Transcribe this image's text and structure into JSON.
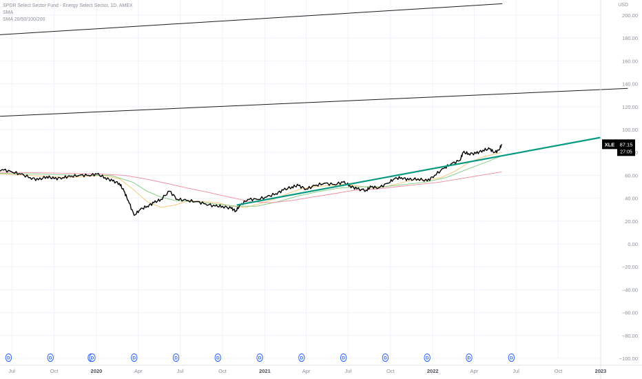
{
  "header": {
    "title": "SPDR Select Sector Fund - Energy Select Sector, 1D, AMEX",
    "indicator1": "SMA",
    "indicator2": "SMA 20/50/100/200",
    "currency": "USD"
  },
  "price_badge": {
    "symbol": "XLE",
    "price": "87.15",
    "countdown": "27:05"
  },
  "dividend_marker_label": "D",
  "colors": {
    "price": "#000000",
    "sma50": "#f5c16c",
    "sma100": "#7ec87e",
    "sma200": "#f08a9b",
    "trendline": "#089981",
    "channel": "#1a1a1a",
    "dividend": "#2962ff",
    "axis_text": "#8a8f99",
    "grid": "#f0f3fa"
  },
  "chart_data": {
    "type": "line",
    "title": "SPDR Select Sector Fund - Energy Select Sector, 1D, AMEX",
    "ylabel": "USD",
    "ylim": [
      -100,
      210
    ],
    "y_ticks": [
      200,
      180,
      160,
      140,
      120,
      100,
      80,
      60,
      40,
      20,
      0,
      -20,
      -40,
      -60,
      -80,
      -100
    ],
    "y_tick_labels": [
      "200.00",
      "180.00",
      "160.00",
      "140.00",
      "120.00",
      "100.00",
      "80.00",
      "60.00",
      "40.00",
      "20.00",
      "0.00",
      "−20.00",
      "−40.00",
      "−60.00",
      "−80.00",
      "−100.00"
    ],
    "x_ticks": [
      "2019-07-01",
      "2019-10-01",
      "2020-01-01",
      "2020-04-01",
      "2020-07-01",
      "2020-10-01",
      "2021-01-01",
      "2021-04-01",
      "2021-07-01",
      "2021-10-01",
      "2022-01-01",
      "2022-04-01",
      "2022-07-01",
      "2022-10-01",
      "2023-01-01"
    ],
    "x_tick_labels": [
      "Jul",
      "Oct",
      "2020",
      "Apr",
      "Jul",
      "Oct",
      "2021",
      "Apr",
      "Jul",
      "Oct",
      "2022",
      "Apr",
      "Jul",
      "Oct",
      "2023"
    ],
    "xlim": [
      "2019-05-01",
      "2023-03-01"
    ],
    "grid": true,
    "series": [
      {
        "name": "XLE",
        "x": [
          "2019-05-01",
          "2019-05-20",
          "2019-06-10",
          "2019-07-01",
          "2019-07-20",
          "2019-08-10",
          "2019-08-28",
          "2019-09-15",
          "2019-10-01",
          "2019-10-20",
          "2019-11-05",
          "2019-11-25",
          "2019-12-15",
          "2020-01-02",
          "2020-01-20",
          "2020-02-05",
          "2020-02-20",
          "2020-03-01",
          "2020-03-10",
          "2020-03-23",
          "2020-04-05",
          "2020-04-20",
          "2020-05-05",
          "2020-05-20",
          "2020-06-08",
          "2020-06-25",
          "2020-07-15",
          "2020-08-05",
          "2020-08-25",
          "2020-09-15",
          "2020-10-01",
          "2020-10-20",
          "2020-10-30",
          "2020-11-09",
          "2020-11-25",
          "2020-12-15",
          "2021-01-05",
          "2021-01-25",
          "2021-02-10",
          "2021-03-01",
          "2021-03-15",
          "2021-04-01",
          "2021-04-20",
          "2021-05-10",
          "2021-06-01",
          "2021-06-20",
          "2021-07-05",
          "2021-07-20",
          "2021-08-10",
          "2021-08-20",
          "2021-09-05",
          "2021-09-25",
          "2021-10-10",
          "2021-10-25",
          "2021-11-10",
          "2021-11-30",
          "2021-12-20",
          "2022-01-05",
          "2022-01-25",
          "2022-02-10",
          "2022-03-01",
          "2022-03-08",
          "2022-03-20",
          "2022-04-05",
          "2022-04-20",
          "2022-05-05",
          "2022-05-15",
          "2022-05-25",
          "2022-05-31"
        ],
        "values": [
          63,
          64,
          65,
          63,
          61,
          58,
          56,
          59,
          57,
          58,
          59,
          60,
          60,
          61,
          58,
          55,
          53,
          46,
          38,
          25,
          30,
          33,
          36,
          39,
          46,
          39,
          38,
          37,
          35,
          33,
          33,
          31,
          29,
          34,
          39,
          39,
          41,
          44,
          47,
          50,
          51,
          48,
          51,
          53,
          52,
          54,
          51,
          48,
          47,
          50,
          49,
          53,
          57,
          58,
          56,
          57,
          55,
          60,
          66,
          70,
          73,
          80,
          79,
          79,
          82,
          83,
          80,
          82,
          87.15
        ]
      },
      {
        "name": "SMA 50",
        "x": [
          "2019-05-01",
          "2019-08-01",
          "2019-11-01",
          "2020-01-15",
          "2020-02-20",
          "2020-03-20",
          "2020-04-20",
          "2020-05-20",
          "2020-06-20",
          "2020-07-20",
          "2020-08-20",
          "2020-09-20",
          "2020-10-20",
          "2020-11-20",
          "2020-12-20",
          "2021-01-20",
          "2021-02-20",
          "2021-03-20",
          "2021-04-20",
          "2021-05-20",
          "2021-06-20",
          "2021-07-20",
          "2021-08-20",
          "2021-09-20",
          "2021-10-20",
          "2021-11-20",
          "2021-12-20",
          "2022-01-20",
          "2022-02-20",
          "2022-03-20",
          "2022-04-20",
          "2022-05-31"
        ],
        "values": [
          62,
          60,
          58,
          60,
          57,
          48,
          37,
          32,
          34,
          38,
          37,
          36,
          33,
          32,
          35,
          39,
          44,
          48,
          50,
          51,
          52,
          51,
          49,
          50,
          53,
          56,
          56,
          58,
          64,
          71,
          76,
          80
        ]
      },
      {
        "name": "SMA 100",
        "x": [
          "2019-05-01",
          "2019-09-01",
          "2019-12-01",
          "2020-02-01",
          "2020-03-20",
          "2020-04-20",
          "2020-05-20",
          "2020-06-20",
          "2020-08-01",
          "2020-09-15",
          "2020-10-30",
          "2020-12-15",
          "2021-01-30",
          "2021-03-15",
          "2021-05-01",
          "2021-06-15",
          "2021-08-01",
          "2021-09-15",
          "2021-11-01",
          "2021-12-15",
          "2022-01-30",
          "2022-03-15",
          "2022-04-30",
          "2022-05-31"
        ],
        "values": [
          62,
          61,
          60,
          60,
          54,
          46,
          41,
          38,
          37,
          35,
          33,
          33,
          37,
          42,
          46,
          49,
          50,
          50,
          52,
          54,
          58,
          65,
          72,
          77
        ]
      },
      {
        "name": "SMA 200",
        "x": [
          "2019-05-01",
          "2019-10-01",
          "2020-01-15",
          "2020-03-01",
          "2020-04-15",
          "2020-06-01",
          "2020-07-15",
          "2020-09-01",
          "2020-10-15",
          "2020-12-01",
          "2021-01-15",
          "2021-03-01",
          "2021-04-15",
          "2021-06-01",
          "2021-07-15",
          "2021-09-01",
          "2021-10-15",
          "2021-12-01",
          "2022-01-15",
          "2022-03-01",
          "2022-04-15",
          "2022-05-31"
        ],
        "values": [
          63,
          62,
          61,
          60,
          57,
          53,
          49,
          45,
          41,
          37,
          36,
          38,
          41,
          44,
          47,
          48,
          50,
          52,
          54,
          57,
          60,
          63
        ]
      }
    ],
    "lines": [
      {
        "name": "trendline",
        "x": [
          "2020-11-01",
          "2022-12-31"
        ],
        "values": [
          34,
          93
        ]
      },
      {
        "name": "channel-upper",
        "x": [
          "2019-05-01",
          "2022-06-01"
        ],
        "values": [
          182,
          210
        ]
      },
      {
        "name": "channel-lower",
        "x": [
          "2019-05-01",
          "2023-03-01"
        ],
        "values": [
          111,
          136
        ]
      }
    ],
    "dividend_dates": [
      "2019-06-24",
      "2019-09-23",
      "2019-12-20",
      "2019-12-23",
      "2020-03-23",
      "2020-06-22",
      "2020-09-21",
      "2020-12-21",
      "2021-03-22",
      "2021-06-21",
      "2021-09-20",
      "2021-12-20",
      "2022-03-21",
      "2022-06-21"
    ]
  }
}
